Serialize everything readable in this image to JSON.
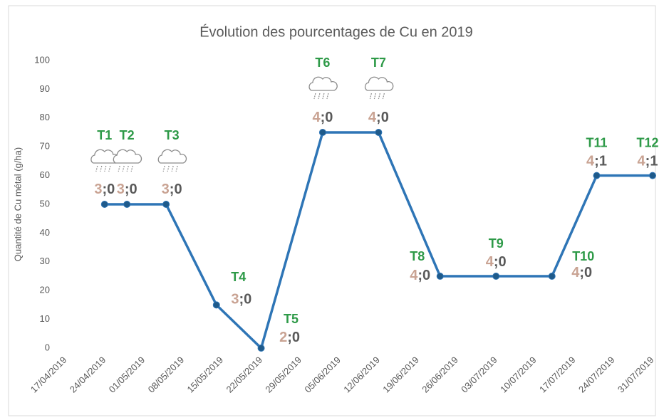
{
  "chart_data": {
    "type": "line",
    "title": "Évolution des pourcentages de Cu en 2019",
    "y_label": "Quantité de Cu métal (g/ha)",
    "x": [
      "24/04/2019",
      "28/04/2019",
      "05/05/2019",
      "14/05/2019",
      "22/05/2019",
      "02/06/2019",
      "12/06/2019",
      "23/06/2019",
      "03/07/2019",
      "13/07/2019",
      "21/07/2019",
      "31/07/2019"
    ],
    "values": [
      50,
      50,
      50,
      15,
      0,
      75,
      75,
      25,
      25,
      25,
      60,
      60
    ],
    "color": "#2e75b6",
    "marker_color": "#1f5a8a",
    "xlim": [
      "16/04/2019",
      "31/07/2019"
    ],
    "xticks": [
      "17/04/2019",
      "24/04/2019",
      "01/05/2019",
      "08/05/2019",
      "15/05/2019",
      "22/05/2019",
      "29/05/2019",
      "05/06/2019",
      "12/06/2019",
      "19/06/2019",
      "26/06/2019",
      "03/07/2019",
      "10/07/2019",
      "17/07/2019",
      "24/07/2019",
      "31/07/2019"
    ],
    "ylim": [
      0,
      100
    ],
    "yticks": [
      0,
      10,
      20,
      30,
      40,
      50,
      60,
      70,
      80,
      90,
      100
    ],
    "grid": false,
    "annotations": [
      {
        "tag": "T1",
        "a": "3",
        "b": ";0",
        "rain": true
      },
      {
        "tag": "T2",
        "a": "3",
        "b": ";0",
        "rain": true
      },
      {
        "tag": "T3",
        "a": "3",
        "b": ";0",
        "rain": true
      },
      {
        "tag": "T4",
        "a": "3",
        "b": ";0",
        "rain": false
      },
      {
        "tag": "T5",
        "a": "2",
        "b": ";0",
        "rain": false
      },
      {
        "tag": "T6",
        "a": "4",
        "b": ";0",
        "rain": true
      },
      {
        "tag": "T7",
        "a": "4",
        "b": ";0",
        "rain": true
      },
      {
        "tag": "T8",
        "a": "4",
        "b": ";0",
        "rain": false
      },
      {
        "tag": "T9",
        "a": "4",
        "b": ";0",
        "rain": false
      },
      {
        "tag": "T10",
        "a": "4",
        "b": ";0",
        "rain": false
      },
      {
        "tag": "T11",
        "a": "4",
        "b": ";1",
        "rain": false
      },
      {
        "tag": "T12",
        "a": "4",
        "b": ";1",
        "rain": false
      }
    ]
  }
}
